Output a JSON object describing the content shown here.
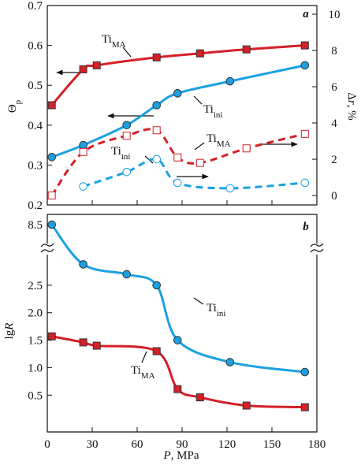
{
  "chart_data": [
    {
      "type": "line",
      "panel_label": "a",
      "y_label": {
        "text": "Θ",
        "sub": "p"
      },
      "y2_label": {
        "text": "Δ",
        "italic": "r",
        "rest": ", %"
      },
      "xlim": [
        0,
        180
      ],
      "xticks": [
        0,
        30,
        60,
        90,
        120,
        150,
        180
      ],
      "ylim": [
        0.2,
        0.7
      ],
      "yticks": [
        0.2,
        0.3,
        0.4,
        0.5,
        0.6,
        0.7
      ],
      "y2lim": [
        -0.52,
        10.48
      ],
      "y2ticks": [
        0,
        2,
        4,
        6,
        8,
        10
      ],
      "series": [
        {
          "color": "#d42027",
          "marker": "square",
          "filled": true,
          "dashed": false,
          "x": [
            3,
            24,
            33,
            73,
            102,
            133,
            172
          ],
          "values": [
            0.45,
            0.54,
            0.55,
            0.57,
            0.58,
            0.59,
            0.6
          ]
        },
        {
          "color": "#1ba1e2",
          "marker": "circle",
          "filled": true,
          "dashed": false,
          "x": [
            3,
            24,
            53,
            73,
            87,
            122,
            172
          ],
          "values": [
            0.32,
            0.35,
            0.4,
            0.45,
            0.48,
            0.51,
            0.55
          ]
        },
        {
          "color": "#d42027",
          "marker": "square",
          "filled": false,
          "dashed": true,
          "axis": "y2",
          "x": [
            3,
            24,
            53,
            73,
            87,
            102,
            133,
            172
          ],
          "values": [
            0,
            2.4,
            3.3,
            3.6,
            2.1,
            1.8,
            2.6,
            3.4
          ]
        },
        {
          "color": "#1ba1e2",
          "marker": "circle",
          "filled": false,
          "dashed": true,
          "axis": "y2",
          "x": [
            24,
            53,
            73,
            87,
            122,
            172
          ],
          "values": [
            0.5,
            1.3,
            2.0,
            0.7,
            0.4,
            0.7
          ]
        }
      ],
      "annotations": [
        {
          "text": "Ti",
          "sub": "MA"
        },
        {
          "text": "Ti",
          "sub": "ini"
        },
        {
          "text": "Ti",
          "sub": "MA"
        },
        {
          "text": "Ti",
          "sub": "ini"
        }
      ]
    },
    {
      "type": "line",
      "panel_label": "b",
      "y_label": {
        "text": "lg",
        "italic": "R"
      },
      "x_label": {
        "italic": "P",
        "rest": ", MPa"
      },
      "xlim": [
        0,
        180
      ],
      "xticks": [
        0,
        30,
        60,
        90,
        120,
        150,
        180
      ],
      "ylim": [
        -0.17,
        8.6
      ],
      "ybreak": [
        2.9,
        8.4
      ],
      "yticks": [
        0.5,
        {
          "value": 1,
          "label": "1.0"
        },
        1.5,
        {
          "value": 2,
          "label": "2.0"
        },
        2.5,
        8.5
      ],
      "series": [
        {
          "color": "#1ba1e2",
          "marker": "circle",
          "filled": true,
          "dashed": false,
          "x": [
            3,
            24,
            53,
            73,
            87,
            122,
            172
          ],
          "values": [
            8.5,
            2.88,
            2.7,
            2.5,
            1.5,
            1.1,
            0.92
          ]
        },
        {
          "color": "#d42027",
          "marker": "square",
          "filled": true,
          "dashed": false,
          "x": [
            3,
            24,
            33,
            73,
            87,
            102,
            133,
            172
          ],
          "values": [
            1.57,
            1.46,
            1.4,
            1.3,
            0.61,
            0.46,
            0.31,
            0.28
          ]
        }
      ],
      "annotations": [
        {
          "text": "Ti",
          "sub": "ini"
        },
        {
          "text": "Ti",
          "sub": "MA"
        }
      ]
    }
  ]
}
